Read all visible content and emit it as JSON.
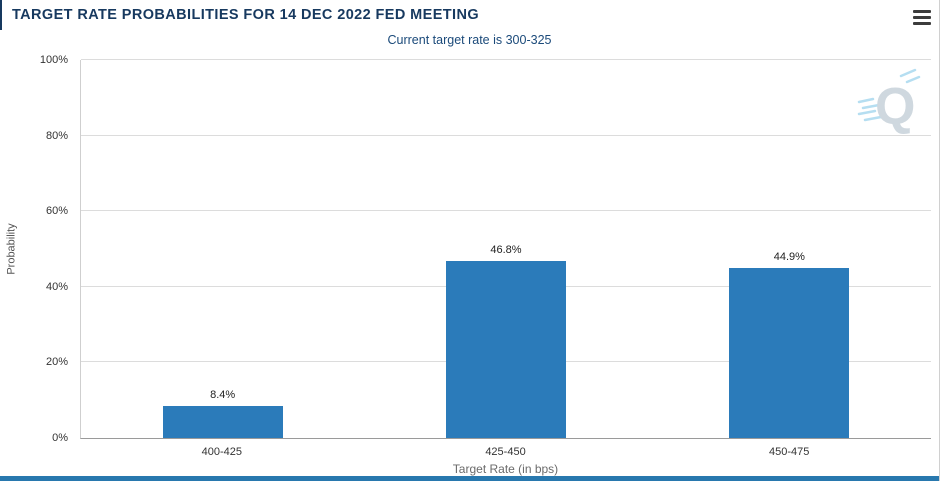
{
  "header": {
    "menu_icon": "hamburger-menu-icon"
  },
  "chart_data": {
    "type": "bar",
    "title": "TARGET RATE PROBABILITIES FOR 14 DEC 2022 FED MEETING",
    "subtitle": "Current target rate is 300-325",
    "categories": [
      "400-425",
      "425-450",
      "450-475"
    ],
    "values": [
      8.4,
      46.8,
      44.9
    ],
    "value_labels": [
      "8.4%",
      "46.8%",
      "44.9%"
    ],
    "xlabel": "Target Rate (in bps)",
    "ylabel": "Probability",
    "ylim": [
      0,
      100
    ],
    "y_ticks": [
      {
        "value": 0,
        "label": "0%"
      },
      {
        "value": 20,
        "label": "20%"
      },
      {
        "value": 40,
        "label": "40%"
      },
      {
        "value": 60,
        "label": "60%"
      },
      {
        "value": 80,
        "label": "80%"
      },
      {
        "value": 100,
        "label": "100%"
      }
    ],
    "grid": true,
    "legend": "none",
    "bar_color": "#2b7bba"
  },
  "watermark": {
    "letter": "Q"
  },
  "colors": {
    "title_navy": "#17395f",
    "subtitle_navy": "#1b4a7a",
    "bar_blue": "#2b7bba",
    "gridline_gray": "#dcdcdc",
    "bottom_strip_blue": "#2878ae",
    "watermark_gray": "#c7d2da",
    "watermark_streak_blue": "#a9d9ef"
  }
}
